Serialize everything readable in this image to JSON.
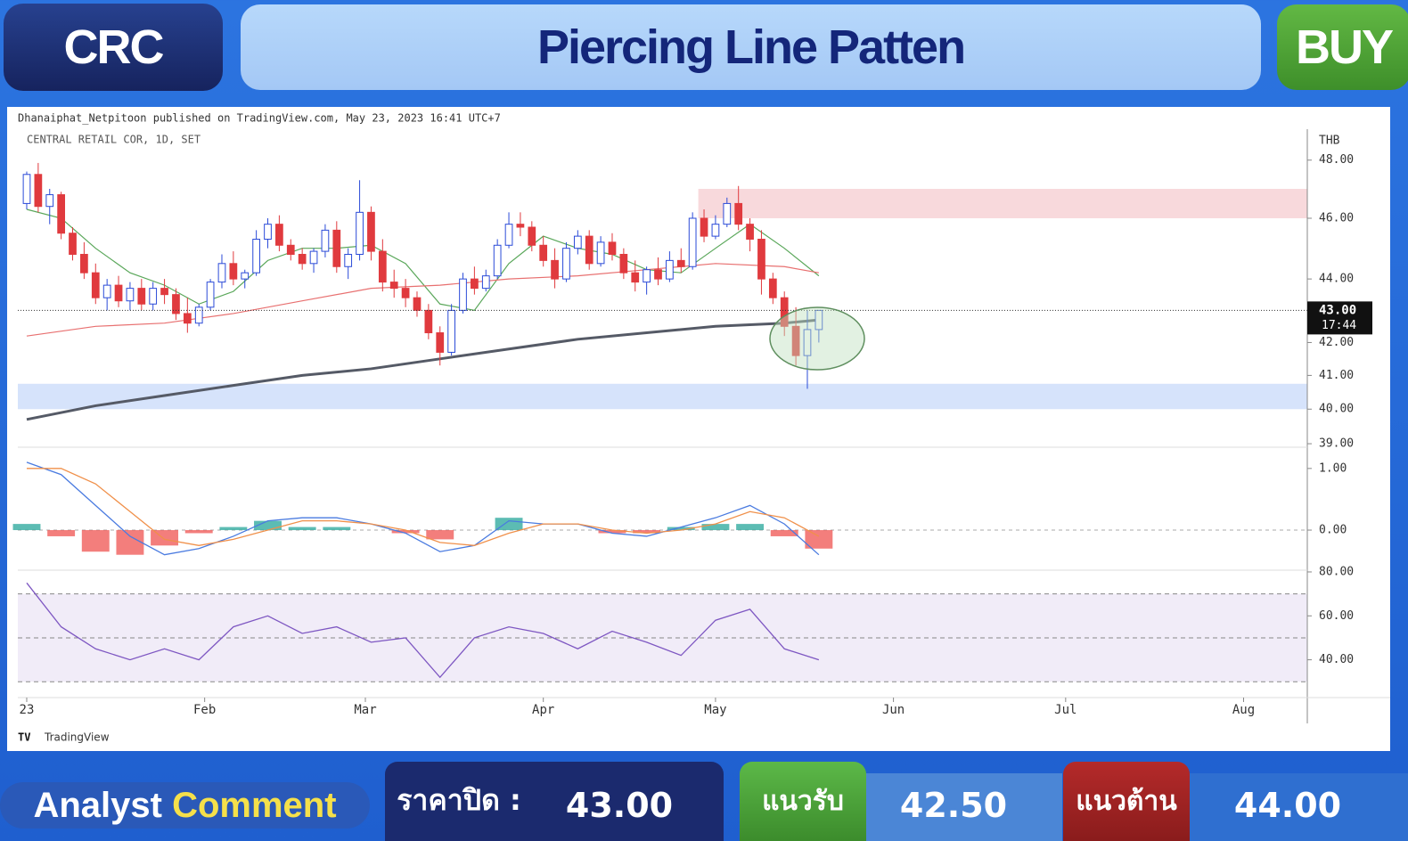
{
  "header": {
    "symbol": "CRC",
    "title": "Piercing Line Patten",
    "signal": "BUY"
  },
  "attribution": "Dhanaiphat_Netpitoon published on TradingView.com, May 23, 2023 16:41 UTC+7",
  "brand": "TradingView",
  "chart_data": [
    {
      "type": "candlestick",
      "title": "CENTRAL RETAIL COR, 1D, SET",
      "unit": "THB",
      "log_scale": true,
      "xlim": [
        -1.55,
        223.1
      ],
      "ylim": [
        38.9,
        49.1
      ],
      "yticks": [
        {
          "value": 39,
          "label": "39.00"
        },
        {
          "value": 40,
          "label": "40.00"
        },
        {
          "value": 41,
          "label": "41.00"
        },
        {
          "value": 42,
          "label": "42.00"
        },
        {
          "value": 44,
          "label": "44.00"
        },
        {
          "value": 46,
          "label": "46.00"
        },
        {
          "value": 48,
          "label": "48.00"
        }
      ],
      "up_color": "#2b4bd8",
      "down_color": "#e03a3e",
      "last_price": {
        "value": 43,
        "label": "43.00"
      },
      "last_price_time": "17:44",
      "zones": [
        {
          "x": [
            117,
            223.1
          ],
          "y": [
            46,
            47
          ],
          "color": "#f8d9dc"
        },
        {
          "x": [
            -1.55,
            223.1
          ],
          "y": [
            40,
            40.75
          ],
          "color": "#d6e3fb"
        }
      ],
      "x": [
        0,
        2,
        4,
        6,
        8,
        10,
        12,
        14,
        16,
        18,
        20,
        22,
        24,
        26,
        28,
        30,
        32,
        34,
        36,
        38,
        40,
        42,
        44,
        46,
        48,
        50,
        52,
        54,
        56,
        58,
        60,
        62,
        64,
        66,
        68,
        70,
        72,
        74,
        76,
        78,
        80,
        82,
        84,
        86,
        88,
        90,
        92,
        94,
        96,
        98,
        100,
        102,
        104,
        106,
        108,
        110,
        112,
        114,
        116,
        118,
        120,
        122,
        124,
        126,
        128,
        130,
        132,
        134,
        136,
        138
      ],
      "open": [
        46.5,
        47.5,
        46.4,
        46.8,
        45.5,
        44.8,
        44.2,
        43.4,
        43.8,
        43.3,
        43.7,
        43.2,
        43.7,
        43.5,
        42.9,
        42.6,
        43.1,
        43.9,
        44.5,
        44.0,
        44.2,
        45.3,
        45.8,
        45.1,
        44.8,
        44.5,
        44.9,
        45.6,
        44.4,
        44.8,
        46.2,
        44.9,
        43.9,
        43.7,
        43.4,
        43.0,
        42.3,
        41.7,
        43.0,
        44.0,
        43.7,
        44.1,
        45.1,
        45.8,
        45.7,
        45.1,
        44.6,
        44.0,
        45.0,
        45.4,
        44.5,
        45.2,
        44.8,
        44.2,
        43.9,
        44.3,
        44.0,
        44.6,
        44.4,
        46.0,
        45.4,
        45.8,
        46.5,
        45.8,
        45.3,
        44.0,
        43.4,
        42.5,
        41.6,
        42.4
      ],
      "high": [
        47.6,
        47.9,
        47.0,
        46.9,
        45.7,
        45.2,
        44.5,
        44.0,
        44.1,
        43.9,
        44.0,
        43.9,
        44.0,
        43.7,
        43.4,
        43.2,
        44.0,
        44.8,
        44.9,
        44.3,
        45.6,
        46.0,
        46.1,
        45.3,
        45.0,
        45.0,
        45.8,
        45.9,
        45.0,
        47.3,
        46.4,
        45.3,
        44.3,
        44.0,
        43.6,
        43.2,
        42.5,
        43.2,
        44.2,
        44.4,
        44.3,
        45.3,
        46.2,
        46.2,
        45.9,
        45.4,
        45.0,
        45.2,
        45.6,
        45.6,
        45.4,
        45.5,
        45.0,
        44.6,
        44.4,
        44.7,
        44.9,
        45.0,
        46.2,
        46.3,
        46.1,
        46.7,
        47.1,
        46.0,
        45.6,
        44.2,
        43.6,
        43.1,
        43.0,
        43.0
      ],
      "low": [
        46.3,
        46.2,
        45.8,
        45.3,
        44.6,
        44.0,
        43.2,
        43.0,
        43.1,
        43.0,
        43.0,
        43.0,
        43.2,
        42.7,
        42.3,
        42.5,
        43.0,
        43.7,
        43.8,
        43.7,
        44.1,
        45.0,
        44.9,
        44.6,
        44.3,
        44.2,
        44.7,
        44.2,
        44.0,
        44.6,
        44.6,
        43.6,
        43.4,
        43.1,
        42.8,
        42.1,
        41.3,
        41.6,
        42.9,
        43.5,
        43.6,
        44.0,
        45.0,
        45.4,
        44.9,
        44.4,
        43.7,
        43.9,
        44.8,
        44.3,
        44.4,
        44.6,
        44.0,
        43.6,
        43.5,
        43.8,
        43.9,
        44.2,
        44.3,
        45.2,
        45.3,
        45.7,
        45.6,
        44.9,
        43.5,
        43.2,
        42.2,
        41.3,
        40.6,
        42.0
      ],
      "close": [
        47.5,
        46.4,
        46.8,
        45.5,
        44.8,
        44.2,
        43.4,
        43.8,
        43.3,
        43.7,
        43.2,
        43.7,
        43.5,
        42.9,
        42.6,
        43.1,
        43.9,
        44.5,
        44.0,
        44.2,
        45.3,
        45.8,
        45.1,
        44.8,
        44.5,
        44.9,
        45.6,
        44.4,
        44.8,
        46.2,
        44.9,
        43.9,
        43.7,
        43.4,
        43.0,
        42.3,
        41.7,
        43.0,
        44.0,
        43.7,
        44.1,
        45.1,
        45.8,
        45.7,
        45.1,
        44.6,
        44.0,
        45.0,
        45.4,
        44.5,
        45.2,
        44.8,
        44.2,
        43.9,
        44.3,
        44.0,
        44.6,
        44.4,
        46.0,
        45.4,
        45.8,
        46.5,
        45.8,
        45.3,
        44.0,
        43.4,
        42.5,
        41.6,
        42.4,
        43.0
      ],
      "overlays": [
        {
          "color": "#5aa75a",
          "x": [
            0,
            6,
            12,
            18,
            24,
            30,
            36,
            42,
            48,
            54,
            60,
            66,
            72,
            78,
            84,
            90,
            96,
            102,
            108,
            114,
            120,
            126,
            132,
            138
          ],
          "values": [
            46.3,
            46.0,
            45.0,
            44.2,
            43.8,
            43.2,
            43.6,
            44.6,
            45.0,
            45.0,
            45.1,
            44.5,
            43.2,
            43.0,
            44.5,
            45.4,
            45.0,
            44.8,
            44.3,
            44.2,
            45.0,
            45.8,
            45.0,
            44.1
          ]
        },
        {
          "color": "#e87070",
          "x": [
            0,
            12,
            24,
            36,
            48,
            60,
            72,
            84,
            96,
            108,
            120,
            132,
            138
          ],
          "values": [
            42.2,
            42.5,
            42.6,
            42.9,
            43.3,
            43.7,
            43.8,
            44.0,
            44.1,
            44.3,
            44.5,
            44.4,
            44.2
          ]
        },
        {
          "color": "#555a66",
          "x": [
            0,
            12,
            24,
            36,
            48,
            60,
            72,
            84,
            96,
            108,
            120,
            132,
            138
          ],
          "values": [
            39.7,
            40.1,
            40.4,
            40.7,
            41.0,
            41.2,
            41.5,
            41.8,
            42.1,
            42.3,
            42.5,
            42.6,
            42.7
          ]
        }
      ]
    },
    {
      "type": "macd",
      "xlim": [
        -1.55,
        223.1
      ],
      "ylim": [
        -0.65,
        1.33
      ],
      "yticks": [
        {
          "value": 0,
          "label": "0.00"
        },
        {
          "value": 1,
          "label": "1.00"
        }
      ],
      "histogram": {
        "pos_color": "#26a69a",
        "neg_color": "#ef5350",
        "x": [
          0,
          6,
          12,
          18,
          24,
          30,
          36,
          42,
          48,
          54,
          60,
          66,
          72,
          78,
          84,
          90,
          96,
          102,
          108,
          114,
          120,
          126,
          132,
          138
        ],
        "values": [
          0.1,
          -0.1,
          -0.35,
          -0.4,
          -0.25,
          -0.05,
          0.05,
          0.15,
          0.05,
          0.05,
          0.0,
          -0.05,
          -0.15,
          0.0,
          0.2,
          0.0,
          0.0,
          -0.05,
          -0.05,
          0.05,
          0.1,
          0.1,
          -0.1,
          -0.3
        ]
      },
      "lines": [
        {
          "color": "#4a7be0",
          "x": [
            0,
            6,
            12,
            18,
            24,
            30,
            36,
            42,
            48,
            54,
            60,
            66,
            72,
            78,
            84,
            90,
            96,
            102,
            108,
            114,
            120,
            126,
            132,
            138
          ],
          "values": [
            1.1,
            0.9,
            0.4,
            -0.1,
            -0.4,
            -0.3,
            -0.1,
            0.15,
            0.2,
            0.2,
            0.1,
            -0.05,
            -0.35,
            -0.25,
            0.15,
            0.1,
            0.1,
            -0.05,
            -0.1,
            0.05,
            0.2,
            0.4,
            0.1,
            -0.4
          ]
        },
        {
          "color": "#f0904a",
          "x": [
            0,
            6,
            12,
            18,
            24,
            30,
            36,
            42,
            48,
            54,
            60,
            66,
            72,
            78,
            84,
            90,
            96,
            102,
            108,
            114,
            120,
            126,
            132,
            138
          ],
          "values": [
            1.0,
            1.0,
            0.75,
            0.3,
            -0.15,
            -0.25,
            -0.15,
            0.0,
            0.15,
            0.15,
            0.1,
            0.0,
            -0.2,
            -0.25,
            -0.05,
            0.1,
            0.1,
            0.0,
            -0.05,
            0.0,
            0.1,
            0.3,
            0.2,
            -0.1
          ]
        }
      ]
    },
    {
      "type": "rsi",
      "xlim": [
        -1.55,
        223.1
      ],
      "ylim": [
        22.8,
        80.8
      ],
      "band": [
        30,
        70
      ],
      "midline": 50,
      "color": "#7e57c2",
      "yticks": [
        {
          "value": 40,
          "label": "40.00"
        },
        {
          "value": 60,
          "label": "60.00"
        },
        {
          "value": 80,
          "label": "80.00"
        }
      ],
      "xticks": [
        {
          "value": 0,
          "label": "23"
        },
        {
          "value": 31,
          "label": "Feb"
        },
        {
          "value": 59,
          "label": "Mar"
        },
        {
          "value": 90,
          "label": "Apr"
        },
        {
          "value": 120,
          "label": "May"
        },
        {
          "value": 151,
          "label": "Jun"
        },
        {
          "value": 181,
          "label": "Jul"
        },
        {
          "value": 212,
          "label": "Aug"
        }
      ],
      "x": [
        0,
        6,
        12,
        18,
        24,
        30,
        36,
        42,
        48,
        54,
        60,
        66,
        72,
        78,
        84,
        90,
        96,
        102,
        108,
        114,
        120,
        126,
        132,
        138
      ],
      "values": [
        75,
        55,
        45,
        40,
        45,
        40,
        55,
        60,
        52,
        55,
        48,
        50,
        32,
        50,
        55,
        52,
        45,
        53,
        48,
        42,
        58,
        63,
        45,
        40
      ]
    }
  ],
  "footer": {
    "heading": [
      "Analyst",
      "Comment"
    ],
    "close_label": "ราคาปิด :",
    "close": "43.00",
    "support_label": "แนวรับ",
    "support": "42.50",
    "resistance_label": "แนวต้าน",
    "resistance": "44.00"
  }
}
